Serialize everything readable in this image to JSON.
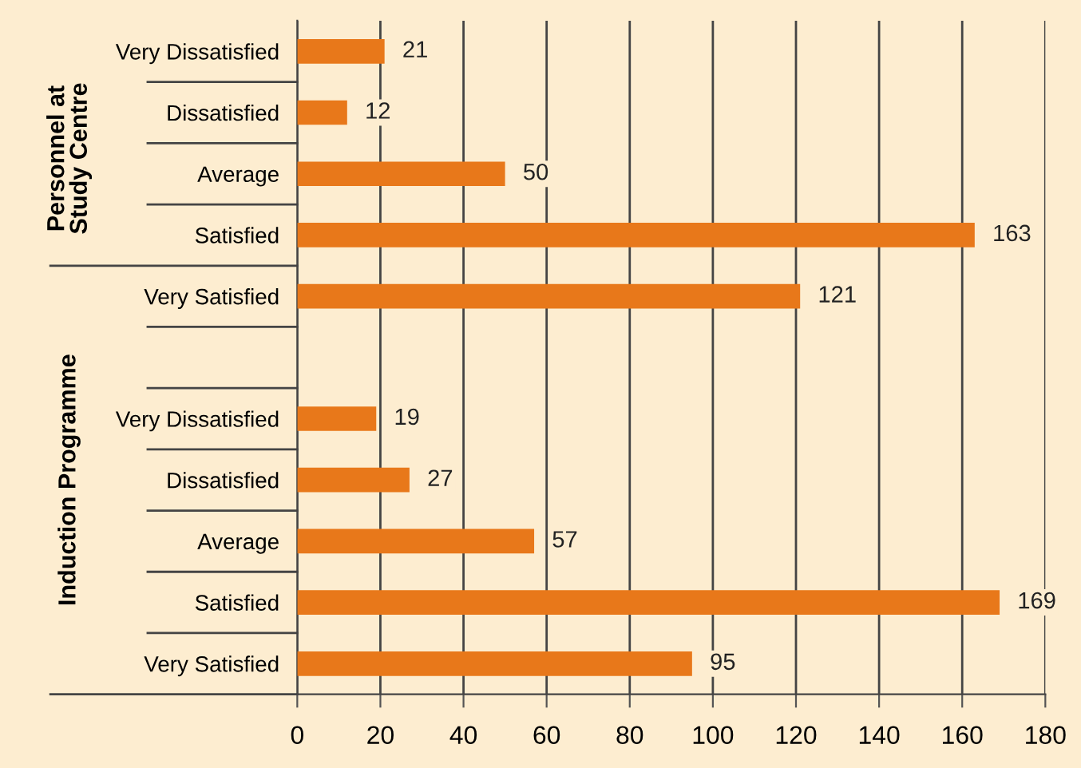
{
  "chart_data": {
    "type": "bar",
    "orientation": "horizontal",
    "categories": [
      "Very Dissatisfied",
      "Dissatisfied",
      "Average",
      "Satisfied",
      "Very Satisfied",
      null,
      "Very Dissatisfied",
      "Dissatisfied",
      "Average",
      "Satisfied",
      "Very Satisfied"
    ],
    "values": [
      21,
      12,
      50,
      163,
      121,
      null,
      19,
      27,
      57,
      169,
      95
    ],
    "color": "#e8781a",
    "data_labels": true,
    "grid": "x",
    "xlim": [
      0,
      180
    ],
    "xticks": [
      0,
      20,
      40,
      60,
      80,
      100,
      120,
      140,
      160,
      180
    ],
    "annotations": [
      "Personnel at\nStudy Centre",
      "Induction Programme"
    ]
  }
}
